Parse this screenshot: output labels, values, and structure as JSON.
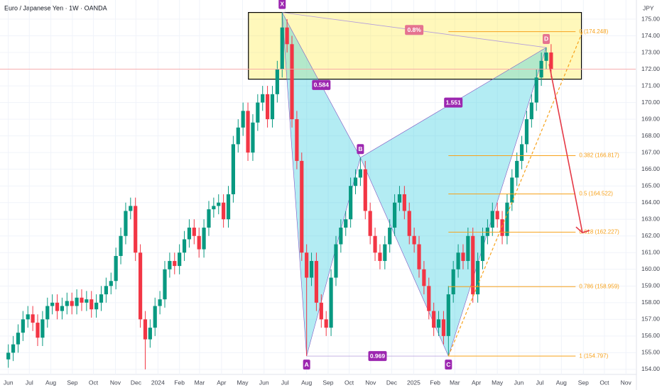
{
  "chart_data": {
    "type": "candlestick",
    "title": "Euro / Japanese Yen · 1W · OANDA",
    "y_axis_label": "JPY",
    "up_color": "#089981",
    "down_color": "#f23645",
    "grid": true,
    "xlim": [
      -1.7,
      128.3
    ],
    "ylim": [
      153.6,
      175.8
    ],
    "xticks": [
      {
        "value": 0,
        "label": "Jun"
      },
      {
        "value": 4.3,
        "label": "Jul"
      },
      {
        "value": 8.7,
        "label": "Aug"
      },
      {
        "value": 13.1,
        "label": "Sep"
      },
      {
        "value": 17.4,
        "label": "Oct"
      },
      {
        "value": 21.9,
        "label": "Nov"
      },
      {
        "value": 26.1,
        "label": "Dec"
      },
      {
        "value": 30.6,
        "label": "2024"
      },
      {
        "value": 35,
        "label": "Feb"
      },
      {
        "value": 39.1,
        "label": "Mar"
      },
      {
        "value": 43.6,
        "label": "Apr"
      },
      {
        "value": 47.9,
        "label": "May"
      },
      {
        "value": 52.3,
        "label": "Jun"
      },
      {
        "value": 56.6,
        "label": "Jul"
      },
      {
        "value": 61,
        "label": "Aug"
      },
      {
        "value": 65.4,
        "label": "Sep"
      },
      {
        "value": 69.7,
        "label": "Oct"
      },
      {
        "value": 74.1,
        "label": "Nov"
      },
      {
        "value": 78.4,
        "label": "Dec"
      },
      {
        "value": 82.9,
        "label": "2025"
      },
      {
        "value": 87.3,
        "label": "Feb"
      },
      {
        "value": 91.3,
        "label": "Mar"
      },
      {
        "value": 95.7,
        "label": "Apr"
      },
      {
        "value": 100,
        "label": "May"
      },
      {
        "value": 104.4,
        "label": "Jun"
      },
      {
        "value": 108.7,
        "label": "Jul"
      },
      {
        "value": 113.1,
        "label": "Aug"
      },
      {
        "value": 117.6,
        "label": "Sep"
      },
      {
        "value": 121.9,
        "label": "Oct"
      },
      {
        "value": 126.3,
        "label": "Nov"
      }
    ],
    "yticks": [
      {
        "value": 154,
        "label": "154.00"
      },
      {
        "value": 155,
        "label": "155.00"
      },
      {
        "value": 156,
        "label": "156.00"
      },
      {
        "value": 157,
        "label": "157.00"
      },
      {
        "value": 158,
        "label": "158.00"
      },
      {
        "value": 159,
        "label": "159.00"
      },
      {
        "value": 160,
        "label": "160.00"
      },
      {
        "value": 161,
        "label": "161.00"
      },
      {
        "value": 162,
        "label": "162.00"
      },
      {
        "value": 163,
        "label": "163.00"
      },
      {
        "value": 164,
        "label": "164.00"
      },
      {
        "value": 165,
        "label": "165.00"
      },
      {
        "value": 166,
        "label": "166.00"
      },
      {
        "value": 167,
        "label": "167.00"
      },
      {
        "value": 168,
        "label": "168.00"
      },
      {
        "value": 169,
        "label": "169.00"
      },
      {
        "value": 170,
        "label": "170.00"
      },
      {
        "value": 171,
        "label": "171.00"
      },
      {
        "value": 172,
        "label": "172.00"
      },
      {
        "value": 173,
        "label": "173.00"
      },
      {
        "value": 174,
        "label": "174.00"
      },
      {
        "value": 175,
        "label": "175.00"
      }
    ],
    "candles": [
      [
        154.6,
        155.5,
        154.1,
        155.0
      ],
      [
        155.0,
        156.0,
        154.5,
        155.5
      ],
      [
        155.5,
        156.7,
        155.0,
        156.2
      ],
      [
        156.2,
        157.5,
        155.7,
        157.0
      ],
      [
        157.0,
        157.8,
        156.5,
        157.3
      ],
      [
        157.3,
        157.8,
        156.3,
        156.8
      ],
      [
        156.8,
        157.3,
        155.4,
        155.9
      ],
      [
        155.9,
        157.5,
        155.4,
        157.0
      ],
      [
        157.0,
        158.3,
        156.5,
        157.8
      ],
      [
        157.8,
        158.5,
        157.3,
        158.0
      ],
      [
        158.0,
        158.5,
        157.0,
        157.5
      ],
      [
        157.5,
        158.3,
        157.0,
        157.8
      ],
      [
        157.8,
        158.6,
        157.3,
        158.1
      ],
      [
        158.1,
        158.6,
        157.3,
        157.8
      ],
      [
        157.8,
        158.8,
        157.3,
        158.3
      ],
      [
        158.3,
        158.8,
        157.5,
        158.0
      ],
      [
        158.0,
        158.7,
        157.5,
        158.2
      ],
      [
        158.2,
        158.7,
        157.1,
        157.6
      ],
      [
        157.6,
        158.5,
        157.1,
        158.0
      ],
      [
        158.0,
        159.0,
        157.5,
        158.5
      ],
      [
        158.5,
        159.5,
        158.0,
        159.0
      ],
      [
        159.0,
        159.8,
        158.5,
        159.3
      ],
      [
        159.3,
        161.3,
        158.8,
        160.8
      ],
      [
        160.8,
        162.5,
        160.3,
        162.0
      ],
      [
        162.0,
        164.0,
        161.5,
        163.5
      ],
      [
        163.5,
        164.3,
        163.0,
        163.8
      ],
      [
        163.8,
        164.3,
        160.5,
        161.0
      ],
      [
        161.0,
        161.5,
        156.5,
        157.0
      ],
      [
        157.0,
        157.5,
        154.0,
        155.8
      ],
      [
        155.8,
        157.0,
        155.3,
        156.5
      ],
      [
        156.5,
        158.3,
        156.0,
        157.8
      ],
      [
        157.8,
        158.7,
        157.3,
        158.2
      ],
      [
        158.2,
        160.5,
        157.7,
        160.0
      ],
      [
        160.0,
        161.0,
        159.5,
        160.5
      ],
      [
        160.5,
        161.0,
        159.7,
        160.2
      ],
      [
        160.2,
        161.5,
        159.7,
        161.0
      ],
      [
        161.0,
        162.3,
        160.5,
        161.8
      ],
      [
        161.8,
        163.0,
        161.3,
        162.5
      ],
      [
        162.5,
        163.0,
        161.5,
        162.0
      ],
      [
        162.0,
        162.5,
        160.7,
        161.2
      ],
      [
        161.2,
        163.0,
        160.7,
        162.5
      ],
      [
        162.5,
        164.1,
        162.0,
        163.6
      ],
      [
        163.6,
        164.3,
        163.1,
        163.8
      ],
      [
        163.8,
        164.5,
        163.3,
        164.0
      ],
      [
        164.0,
        164.5,
        162.5,
        163.0
      ],
      [
        163.0,
        165.0,
        162.5,
        164.5
      ],
      [
        164.5,
        168.0,
        164.0,
        167.5
      ],
      [
        167.5,
        169.0,
        167.0,
        168.5
      ],
      [
        168.5,
        170.0,
        168.0,
        169.5
      ],
      [
        169.5,
        170.0,
        166.5,
        167.0
      ],
      [
        167.0,
        169.3,
        166.5,
        168.8
      ],
      [
        168.8,
        170.5,
        168.3,
        170.0
      ],
      [
        170.0,
        171.0,
        169.5,
        170.5
      ],
      [
        170.5,
        171.0,
        168.5,
        169.0
      ],
      [
        169.0,
        171.0,
        168.5,
        170.5
      ],
      [
        170.5,
        172.5,
        170.0,
        172.0
      ],
      [
        172.0,
        175.4,
        171.5,
        174.5
      ],
      [
        174.5,
        175.0,
        173.0,
        173.5
      ],
      [
        173.5,
        174.0,
        168.5,
        169.0
      ],
      [
        169.0,
        169.5,
        166.0,
        166.5
      ],
      [
        166.5,
        167.0,
        160.5,
        161.0
      ],
      [
        161.0,
        161.5,
        154.8,
        159.5
      ],
      [
        159.5,
        161.0,
        159.0,
        160.5
      ],
      [
        160.5,
        161.0,
        157.5,
        158.0
      ],
      [
        158.0,
        158.5,
        156.5,
        157.0
      ],
      [
        157.0,
        157.5,
        156.0,
        156.5
      ],
      [
        156.5,
        160.0,
        156.0,
        159.5
      ],
      [
        159.5,
        162.0,
        159.0,
        161.5
      ],
      [
        161.5,
        163.0,
        161.0,
        162.5
      ],
      [
        162.5,
        163.5,
        162.0,
        163.0
      ],
      [
        163.0,
        165.5,
        162.5,
        165.0
      ],
      [
        165.0,
        166.0,
        164.5,
        165.5
      ],
      [
        165.5,
        166.7,
        165.0,
        166.0
      ],
      [
        166.0,
        166.5,
        163.0,
        163.5
      ],
      [
        163.5,
        164.0,
        161.5,
        162.0
      ],
      [
        162.0,
        162.5,
        160.5,
        161.0
      ],
      [
        161.0,
        161.5,
        160.0,
        160.5
      ],
      [
        160.5,
        162.0,
        160.0,
        161.5
      ],
      [
        161.5,
        163.0,
        161.0,
        162.5
      ],
      [
        162.5,
        164.5,
        162.0,
        164.0
      ],
      [
        164.0,
        165.0,
        163.5,
        164.5
      ],
      [
        164.5,
        165.0,
        163.0,
        163.5
      ],
      [
        163.5,
        164.0,
        161.5,
        162.0
      ],
      [
        162.0,
        162.5,
        161.0,
        161.5
      ],
      [
        161.5,
        162.0,
        159.5,
        160.0
      ],
      [
        160.0,
        160.5,
        158.5,
        159.0
      ],
      [
        159.0,
        159.5,
        157.0,
        157.5
      ],
      [
        157.5,
        158.0,
        156.0,
        156.5
      ],
      [
        156.5,
        157.5,
        156.0,
        157.0
      ],
      [
        157.0,
        157.5,
        155.5,
        156.0
      ],
      [
        156.0,
        159.0,
        154.8,
        158.5
      ],
      [
        158.5,
        160.5,
        158.0,
        160.0
      ],
      [
        160.0,
        161.5,
        159.5,
        161.0
      ],
      [
        161.0,
        161.5,
        160.0,
        160.5
      ],
      [
        160.5,
        162.5,
        160.0,
        162.0
      ],
      [
        162.0,
        162.5,
        158.0,
        158.5
      ],
      [
        158.5,
        161.0,
        158.0,
        160.5
      ],
      [
        160.5,
        162.5,
        160.0,
        162.0
      ],
      [
        162.0,
        163.0,
        161.5,
        162.5
      ],
      [
        162.5,
        164.0,
        162.0,
        163.5
      ],
      [
        163.5,
        164.0,
        162.5,
        163.0
      ],
      [
        163.0,
        163.5,
        161.5,
        162.0
      ],
      [
        162.0,
        164.5,
        161.5,
        164.0
      ],
      [
        164.0,
        166.0,
        163.5,
        165.5
      ],
      [
        165.5,
        167.0,
        165.0,
        166.5
      ],
      [
        166.5,
        168.0,
        166.0,
        167.5
      ],
      [
        167.5,
        169.5,
        167.0,
        169.0
      ],
      [
        169.0,
        170.5,
        168.5,
        170.0
      ],
      [
        170.0,
        172.0,
        169.5,
        171.5
      ],
      [
        171.5,
        173.0,
        171.0,
        172.5
      ],
      [
        172.5,
        173.3,
        172.0,
        173.0
      ],
      [
        173.0,
        173.5,
        171.5,
        172.0
      ]
    ],
    "last_price_line": 172.0,
    "zone": {
      "x": [
        49.1,
        117.2
      ],
      "y": [
        171.4,
        175.4
      ]
    },
    "pattern": {
      "points": [
        {
          "label": "X",
          "x": 56,
          "y": 175.4
        },
        {
          "label": "A",
          "x": 61,
          "y": 154.8
        },
        {
          "label": "B",
          "x": 72,
          "y": 166.7
        },
        {
          "label": "C",
          "x": 90,
          "y": 154.8
        },
        {
          "label": "D",
          "x": 110,
          "y": 173.3
        }
      ],
      "ratios": [
        "0.8%",
        "0.584",
        "1.551",
        "0.969"
      ]
    },
    "fib_range": [
      90,
      116
    ],
    "fib_levels": [
      {
        "label": "0 (174.248)",
        "value": 174.248
      },
      {
        "label": "0.382 (166.817)",
        "value": 166.817
      },
      {
        "label": "0.5 (164.522)",
        "value": 164.522
      },
      {
        "label": "0.618 (162.227)",
        "value": 162.227
      },
      {
        "label": "0.786 (158.959)",
        "value": 158.959
      },
      {
        "label": "1 (154.797)",
        "value": 154.797
      }
    ],
    "projection": {
      "from": [
        90,
        154.8
      ],
      "to": [
        117.5,
        174.3
      ]
    },
    "arrow": {
      "from": [
        110.6,
        172.3
      ],
      "to": [
        117.4,
        162.2
      ]
    }
  }
}
